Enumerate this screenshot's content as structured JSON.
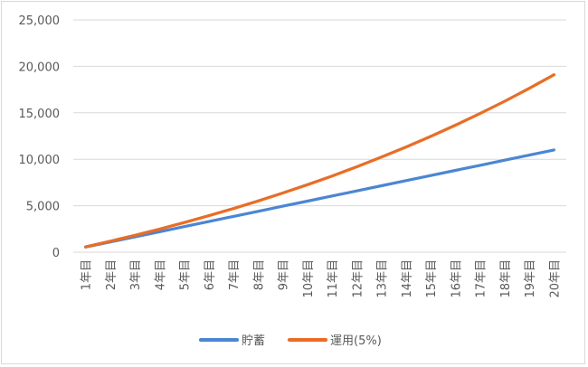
{
  "chart_data": {
    "type": "line",
    "title": "",
    "xlabel": "",
    "ylabel": "",
    "categories": [
      "1年目",
      "2年目",
      "3年目",
      "4年目",
      "5年目",
      "6年目",
      "7年目",
      "8年目",
      "9年目",
      "10年目",
      "11年目",
      "12年目",
      "13年目",
      "14年目",
      "15年目",
      "16年目",
      "17年目",
      "18年目",
      "19年目",
      "20年目"
    ],
    "ylim": [
      0,
      25000
    ],
    "yticks": [
      0,
      5000,
      10000,
      15000,
      20000,
      25000
    ],
    "ytick_labels": [
      "0",
      "5,000",
      "10,000",
      "15,000",
      "20,000",
      "25,000"
    ],
    "grid": true,
    "legend_position": "bottom",
    "series": [
      {
        "name": "貯蓄",
        "color": "#4a86d4",
        "values": [
          550,
          1100,
          1650,
          2200,
          2750,
          3300,
          3850,
          4400,
          4950,
          5500,
          6050,
          6600,
          7150,
          7700,
          8250,
          8800,
          9350,
          9900,
          10450,
          11000
        ]
      },
      {
        "name": "運用(5%)",
        "color": "#ed6c23",
        "values": [
          578,
          1184,
          1821,
          2489,
          3191,
          3928,
          4702,
          5514,
          6367,
          7264,
          8205,
          9193,
          10230,
          11320,
          12463,
          13664,
          14925,
          16249,
          17639,
          19099
        ]
      }
    ]
  }
}
